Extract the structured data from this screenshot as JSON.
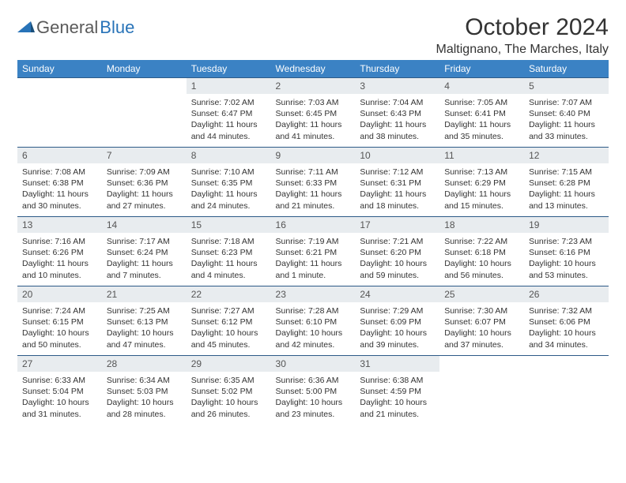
{
  "logo": {
    "text1": "General",
    "text2": "Blue"
  },
  "title": "October 2024",
  "location": "Maltignano, The Marches, Italy",
  "weekdays": [
    "Sunday",
    "Monday",
    "Tuesday",
    "Wednesday",
    "Thursday",
    "Friday",
    "Saturday"
  ],
  "colors": {
    "header_bg": "#3b82c4",
    "header_text": "#ffffff",
    "daynum_bg": "#e8ecef",
    "row_border": "#2d5a87",
    "text": "#333333",
    "logo_gray": "#5a5a5a",
    "logo_blue": "#2873b8"
  },
  "weeks": [
    [
      null,
      null,
      {
        "n": "1",
        "sr": "Sunrise: 7:02 AM",
        "ss": "Sunset: 6:47 PM",
        "dl1": "Daylight: 11 hours",
        "dl2": "and 44 minutes."
      },
      {
        "n": "2",
        "sr": "Sunrise: 7:03 AM",
        "ss": "Sunset: 6:45 PM",
        "dl1": "Daylight: 11 hours",
        "dl2": "and 41 minutes."
      },
      {
        "n": "3",
        "sr": "Sunrise: 7:04 AM",
        "ss": "Sunset: 6:43 PM",
        "dl1": "Daylight: 11 hours",
        "dl2": "and 38 minutes."
      },
      {
        "n": "4",
        "sr": "Sunrise: 7:05 AM",
        "ss": "Sunset: 6:41 PM",
        "dl1": "Daylight: 11 hours",
        "dl2": "and 35 minutes."
      },
      {
        "n": "5",
        "sr": "Sunrise: 7:07 AM",
        "ss": "Sunset: 6:40 PM",
        "dl1": "Daylight: 11 hours",
        "dl2": "and 33 minutes."
      }
    ],
    [
      {
        "n": "6",
        "sr": "Sunrise: 7:08 AM",
        "ss": "Sunset: 6:38 PM",
        "dl1": "Daylight: 11 hours",
        "dl2": "and 30 minutes."
      },
      {
        "n": "7",
        "sr": "Sunrise: 7:09 AM",
        "ss": "Sunset: 6:36 PM",
        "dl1": "Daylight: 11 hours",
        "dl2": "and 27 minutes."
      },
      {
        "n": "8",
        "sr": "Sunrise: 7:10 AM",
        "ss": "Sunset: 6:35 PM",
        "dl1": "Daylight: 11 hours",
        "dl2": "and 24 minutes."
      },
      {
        "n": "9",
        "sr": "Sunrise: 7:11 AM",
        "ss": "Sunset: 6:33 PM",
        "dl1": "Daylight: 11 hours",
        "dl2": "and 21 minutes."
      },
      {
        "n": "10",
        "sr": "Sunrise: 7:12 AM",
        "ss": "Sunset: 6:31 PM",
        "dl1": "Daylight: 11 hours",
        "dl2": "and 18 minutes."
      },
      {
        "n": "11",
        "sr": "Sunrise: 7:13 AM",
        "ss": "Sunset: 6:29 PM",
        "dl1": "Daylight: 11 hours",
        "dl2": "and 15 minutes."
      },
      {
        "n": "12",
        "sr": "Sunrise: 7:15 AM",
        "ss": "Sunset: 6:28 PM",
        "dl1": "Daylight: 11 hours",
        "dl2": "and 13 minutes."
      }
    ],
    [
      {
        "n": "13",
        "sr": "Sunrise: 7:16 AM",
        "ss": "Sunset: 6:26 PM",
        "dl1": "Daylight: 11 hours",
        "dl2": "and 10 minutes."
      },
      {
        "n": "14",
        "sr": "Sunrise: 7:17 AM",
        "ss": "Sunset: 6:24 PM",
        "dl1": "Daylight: 11 hours",
        "dl2": "and 7 minutes."
      },
      {
        "n": "15",
        "sr": "Sunrise: 7:18 AM",
        "ss": "Sunset: 6:23 PM",
        "dl1": "Daylight: 11 hours",
        "dl2": "and 4 minutes."
      },
      {
        "n": "16",
        "sr": "Sunrise: 7:19 AM",
        "ss": "Sunset: 6:21 PM",
        "dl1": "Daylight: 11 hours",
        "dl2": "and 1 minute."
      },
      {
        "n": "17",
        "sr": "Sunrise: 7:21 AM",
        "ss": "Sunset: 6:20 PM",
        "dl1": "Daylight: 10 hours",
        "dl2": "and 59 minutes."
      },
      {
        "n": "18",
        "sr": "Sunrise: 7:22 AM",
        "ss": "Sunset: 6:18 PM",
        "dl1": "Daylight: 10 hours",
        "dl2": "and 56 minutes."
      },
      {
        "n": "19",
        "sr": "Sunrise: 7:23 AM",
        "ss": "Sunset: 6:16 PM",
        "dl1": "Daylight: 10 hours",
        "dl2": "and 53 minutes."
      }
    ],
    [
      {
        "n": "20",
        "sr": "Sunrise: 7:24 AM",
        "ss": "Sunset: 6:15 PM",
        "dl1": "Daylight: 10 hours",
        "dl2": "and 50 minutes."
      },
      {
        "n": "21",
        "sr": "Sunrise: 7:25 AM",
        "ss": "Sunset: 6:13 PM",
        "dl1": "Daylight: 10 hours",
        "dl2": "and 47 minutes."
      },
      {
        "n": "22",
        "sr": "Sunrise: 7:27 AM",
        "ss": "Sunset: 6:12 PM",
        "dl1": "Daylight: 10 hours",
        "dl2": "and 45 minutes."
      },
      {
        "n": "23",
        "sr": "Sunrise: 7:28 AM",
        "ss": "Sunset: 6:10 PM",
        "dl1": "Daylight: 10 hours",
        "dl2": "and 42 minutes."
      },
      {
        "n": "24",
        "sr": "Sunrise: 7:29 AM",
        "ss": "Sunset: 6:09 PM",
        "dl1": "Daylight: 10 hours",
        "dl2": "and 39 minutes."
      },
      {
        "n": "25",
        "sr": "Sunrise: 7:30 AM",
        "ss": "Sunset: 6:07 PM",
        "dl1": "Daylight: 10 hours",
        "dl2": "and 37 minutes."
      },
      {
        "n": "26",
        "sr": "Sunrise: 7:32 AM",
        "ss": "Sunset: 6:06 PM",
        "dl1": "Daylight: 10 hours",
        "dl2": "and 34 minutes."
      }
    ],
    [
      {
        "n": "27",
        "sr": "Sunrise: 6:33 AM",
        "ss": "Sunset: 5:04 PM",
        "dl1": "Daylight: 10 hours",
        "dl2": "and 31 minutes."
      },
      {
        "n": "28",
        "sr": "Sunrise: 6:34 AM",
        "ss": "Sunset: 5:03 PM",
        "dl1": "Daylight: 10 hours",
        "dl2": "and 28 minutes."
      },
      {
        "n": "29",
        "sr": "Sunrise: 6:35 AM",
        "ss": "Sunset: 5:02 PM",
        "dl1": "Daylight: 10 hours",
        "dl2": "and 26 minutes."
      },
      {
        "n": "30",
        "sr": "Sunrise: 6:36 AM",
        "ss": "Sunset: 5:00 PM",
        "dl1": "Daylight: 10 hours",
        "dl2": "and 23 minutes."
      },
      {
        "n": "31",
        "sr": "Sunrise: 6:38 AM",
        "ss": "Sunset: 4:59 PM",
        "dl1": "Daylight: 10 hours",
        "dl2": "and 21 minutes."
      },
      null,
      null
    ]
  ]
}
